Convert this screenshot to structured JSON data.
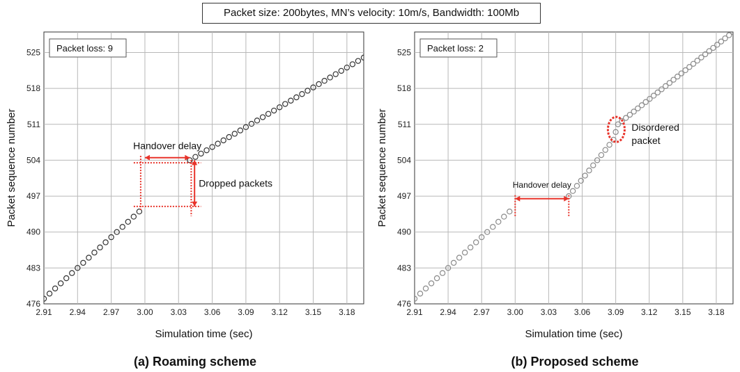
{
  "figure_title": "Packet size: 200bytes, MN’s velocity: 10m/s, Bandwidth:  100Mb",
  "chart_data": [
    {
      "type": "scatter",
      "caption": "(a) Roaming scheme",
      "xlabel": "Simulation time (sec)",
      "ylabel": "Packet sequence number",
      "xlim": [
        2.91,
        3.195
      ],
      "ylim": [
        476,
        529
      ],
      "xticks": [
        "2.91",
        "2.94",
        "2.97",
        "3.00",
        "3.03",
        "3.06",
        "3.09",
        "3.12",
        "3.15",
        "3.18"
      ],
      "yticks": [
        "476",
        "483",
        "490",
        "497",
        "504",
        "511",
        "518",
        "525"
      ],
      "grid": true,
      "marker_color": "#333333",
      "loss_label": "Packet loss:  9",
      "series": [
        {
          "x_start": 2.91,
          "x_end": 2.995,
          "y_start": 477,
          "y_end": 494,
          "count": 18
        },
        {
          "x_start": 3.04,
          "x_end": 3.195,
          "y_start": 504,
          "y_end": 524,
          "count": 32
        }
      ],
      "annotations": {
        "handover_delay": {
          "label": "Handover delay",
          "x_start": 3.0,
          "x_end": 3.04,
          "y": 504.5
        },
        "dropped_packets": {
          "label": "Dropped packets",
          "x": 3.043,
          "y_start": 495,
          "y_end": 504
        },
        "dotted_box": {
          "x_start": 2.995,
          "x_end": 3.045,
          "y_low": 495,
          "y_high": 503.5
        },
        "color": "#e8332a"
      }
    },
    {
      "type": "scatter",
      "caption": "(b) Proposed scheme",
      "xlabel": "Simulation time (sec)",
      "ylabel": "Packet sequence number",
      "xlim": [
        2.91,
        3.195
      ],
      "ylim": [
        476,
        529
      ],
      "xticks": [
        "2.91",
        "2.94",
        "2.97",
        "3.00",
        "3.03",
        "3.06",
        "3.09",
        "3.12",
        "3.15",
        "3.18"
      ],
      "yticks": [
        "476",
        "483",
        "490",
        "497",
        "504",
        "511",
        "518",
        "525"
      ],
      "grid": true,
      "marker_color": "#8a8a8a",
      "loss_label": "Packet loss:  2",
      "series": [
        {
          "x_start": 2.91,
          "x_end": 2.995,
          "y_start": 477,
          "y_end": 494,
          "count": 18
        },
        {
          "x_start": 3.048,
          "x_end": 3.088,
          "y_start": 497,
          "y_end": 508,
          "count": 12
        },
        {
          "x_start": 3.092,
          "x_end": 3.195,
          "y_start": 511,
          "y_end": 529,
          "count": 30
        }
      ],
      "disordered_point": {
        "x": 3.09,
        "y": 509.5
      },
      "annotations": {
        "handover_delay": {
          "label": "Handover  delay",
          "x_start": 3.0,
          "x_end": 3.048,
          "y": 496.5
        },
        "disordered": {
          "label_line1": "Disordered",
          "label_line2": "packet",
          "x": 3.0905,
          "y": 510
        },
        "color": "#e8332a"
      }
    }
  ]
}
